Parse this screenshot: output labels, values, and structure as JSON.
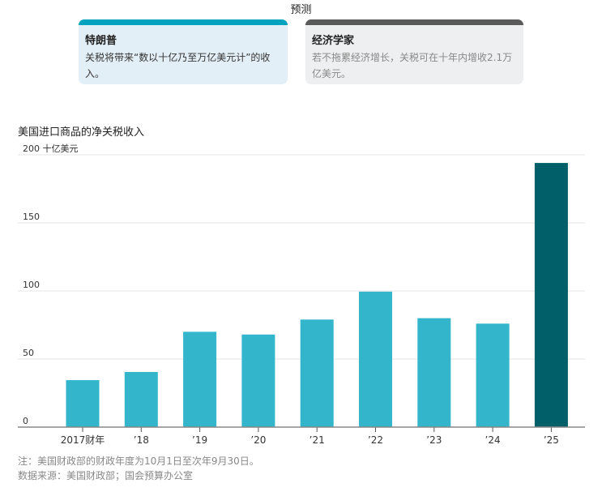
{
  "forecast": {
    "title": "预测",
    "trump": {
      "name": "特朗普",
      "text": "关税将带来“数以十亿乃至万亿美元计”的收入。"
    },
    "economists": {
      "name": "经济学家",
      "text": "若不拖累经济增长，关税可在十年内增收2.1万亿美元。"
    }
  },
  "chart_data": {
    "type": "bar",
    "title": "美国进口商品的净关税收入",
    "ylabel": "十亿美元",
    "categories": [
      "2017财年",
      "’18",
      "’19",
      "’20",
      "’21",
      "’22",
      "’23",
      "’24",
      "’25"
    ],
    "values": [
      34.5,
      40.5,
      70,
      68,
      79,
      99.5,
      80,
      76,
      194
    ],
    "ylim": [
      0,
      200
    ],
    "yticks": [
      0,
      50,
      100,
      150,
      200
    ],
    "ytick_labels": [
      "0",
      "50",
      "100",
      "150",
      "200 十亿美元"
    ],
    "colors": {
      "default": "#33b5cb",
      "highlight": "#005f68"
    },
    "highlight_index": 8,
    "grid": true
  },
  "notes": {
    "note": "注：美国财政部的财政年度为10月1日至次年9月30日。",
    "source": "数据来源：美国财政部；国会预算办公室"
  }
}
